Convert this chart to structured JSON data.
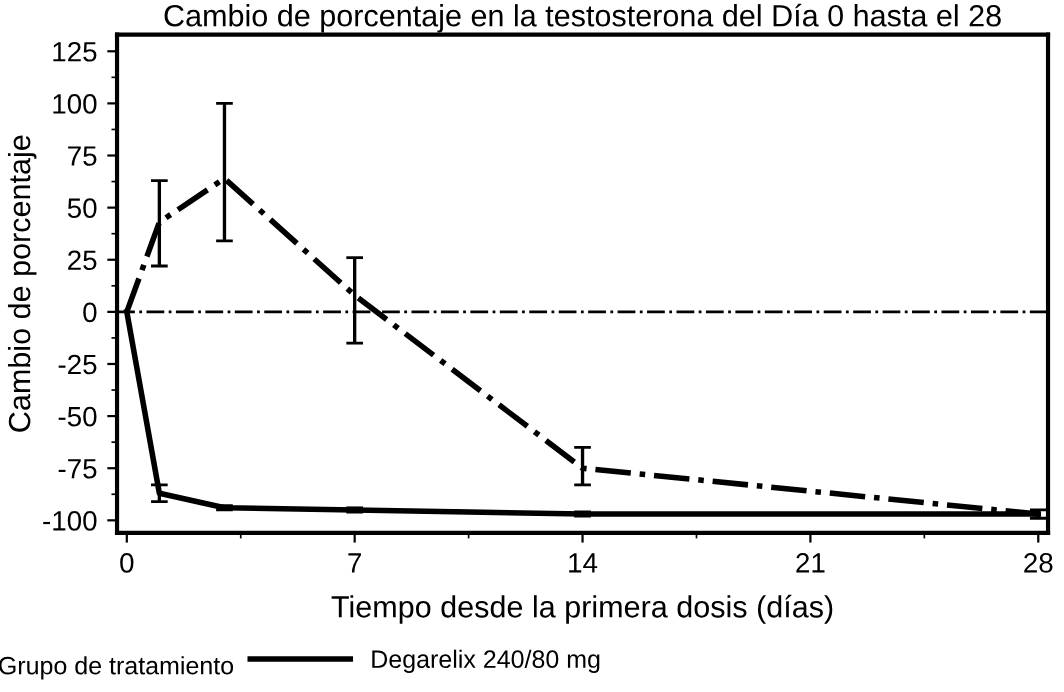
{
  "chart_data": {
    "type": "line",
    "title": "Cambio de porcentaje en la testosterona del Día 0 hasta el 28",
    "xlabel": "Tiempo desde la primera dosis (días)",
    "ylabel": "Cambio de porcentaje",
    "legend_title": "Grupo de tratamiento",
    "legend": "bottom",
    "grid": false,
    "marker": "none",
    "x": [
      0,
      1,
      3,
      7,
      14,
      28
    ],
    "series": [
      {
        "name": "Degarelix 240/80 mg",
        "color": "#000000",
        "line_style": "solid",
        "values": [
          0,
          -87,
          -94,
          -95,
          -97,
          -97
        ],
        "errors": [
          null,
          [
            -91,
            -83
          ],
          [
            -95,
            -93
          ],
          [
            -96,
            -94
          ],
          [
            -98,
            -96
          ],
          [
            -99,
            -95
          ]
        ]
      },
      {
        "color": "#000000",
        "line_style": "dashdot",
        "values": [
          0,
          43,
          64,
          8,
          -75,
          -97
        ],
        "errors": [
          null,
          [
            22,
            63
          ],
          [
            34,
            100
          ],
          [
            -15,
            26
          ],
          [
            -83,
            -65
          ],
          null
        ]
      }
    ],
    "ref_lines": [
      {
        "axis": "y",
        "value": 0,
        "line_style": "dashdot",
        "color": "#000000"
      }
    ],
    "xlim": [
      -0.3,
      28.3
    ],
    "xticks": [
      0,
      7,
      14,
      21,
      28
    ],
    "ylim": [
      -106,
      133
    ],
    "yticks": [
      -100,
      -75,
      -50,
      -25,
      0,
      25,
      50,
      75,
      100,
      125
    ]
  }
}
